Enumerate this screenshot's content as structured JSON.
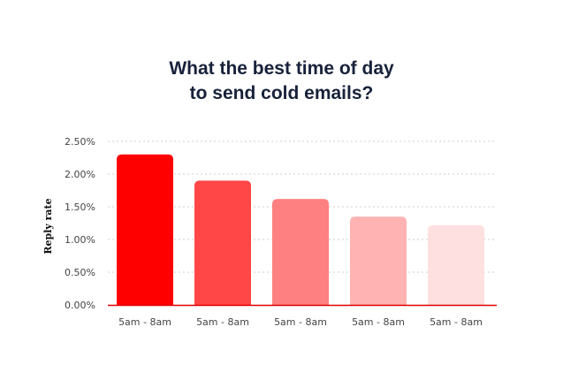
{
  "chart_data": {
    "type": "bar",
    "title_lines": [
      "What the best time of day",
      "to send cold emails?"
    ],
    "ylabel": "Reply rate",
    "xlabel": "",
    "categories": [
      "5am - 8am",
      "5am - 8am",
      "5am - 8am",
      "5am - 8am",
      "5am - 8am"
    ],
    "values": [
      2.3,
      1.9,
      1.62,
      1.35,
      1.22
    ],
    "value_unit": "%",
    "ylim": [
      0,
      2.5
    ],
    "yticks": [
      "0.00%",
      "0.50%",
      "1.00%",
      "1.50%",
      "2.00%",
      "2.50%"
    ],
    "grid": true,
    "legend": "none",
    "bar_colors": [
      "#ff0000",
      "#ff4747",
      "#ff8080",
      "#ffb3b3",
      "#ffe0e0"
    ],
    "axis_color": "#e00000",
    "grid_color": "#cccccc"
  }
}
